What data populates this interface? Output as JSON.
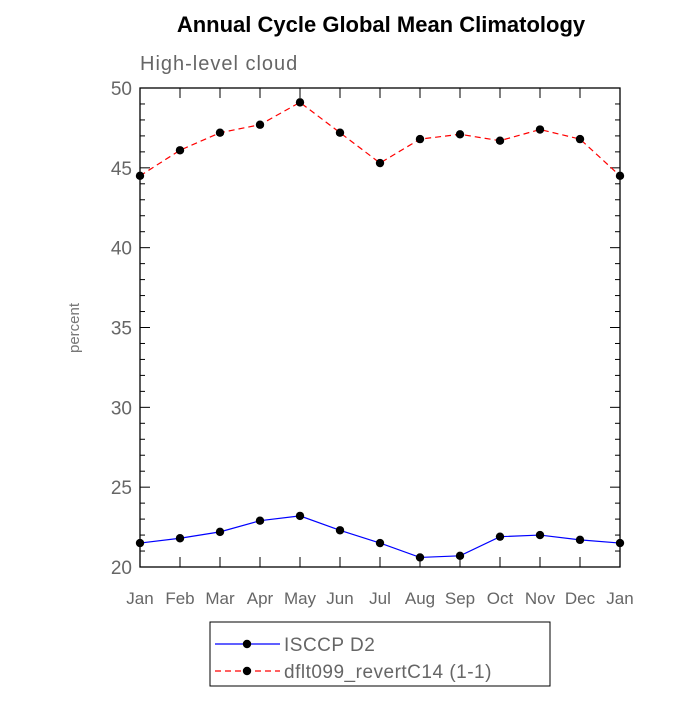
{
  "chart_data": {
    "type": "line",
    "title": "Annual Cycle Global Mean Climatology",
    "subtitle": "High-level cloud",
    "xlabel": "",
    "ylabel": "percent",
    "categories": [
      "Jan",
      "Feb",
      "Mar",
      "Apr",
      "May",
      "Jun",
      "Jul",
      "Aug",
      "Sep",
      "Oct",
      "Nov",
      "Dec",
      "Jan"
    ],
    "ylim": [
      20,
      50
    ],
    "yticks": [
      20,
      25,
      30,
      35,
      40,
      45,
      50
    ],
    "series": [
      {
        "name": "ISCCP D2",
        "color": "#0000ff",
        "dash": "solid",
        "values": [
          21.5,
          21.8,
          22.2,
          22.9,
          23.2,
          22.3,
          21.5,
          20.6,
          20.7,
          21.9,
          22.0,
          21.7,
          21.5
        ]
      },
      {
        "name": "dflt099_revertC14 (1-1)",
        "color": "#ff0000",
        "dash": "dashed",
        "values": [
          44.5,
          46.1,
          47.2,
          47.7,
          49.1,
          47.2,
          45.3,
          46.8,
          47.1,
          46.7,
          47.4,
          46.8,
          44.5
        ]
      }
    ]
  }
}
